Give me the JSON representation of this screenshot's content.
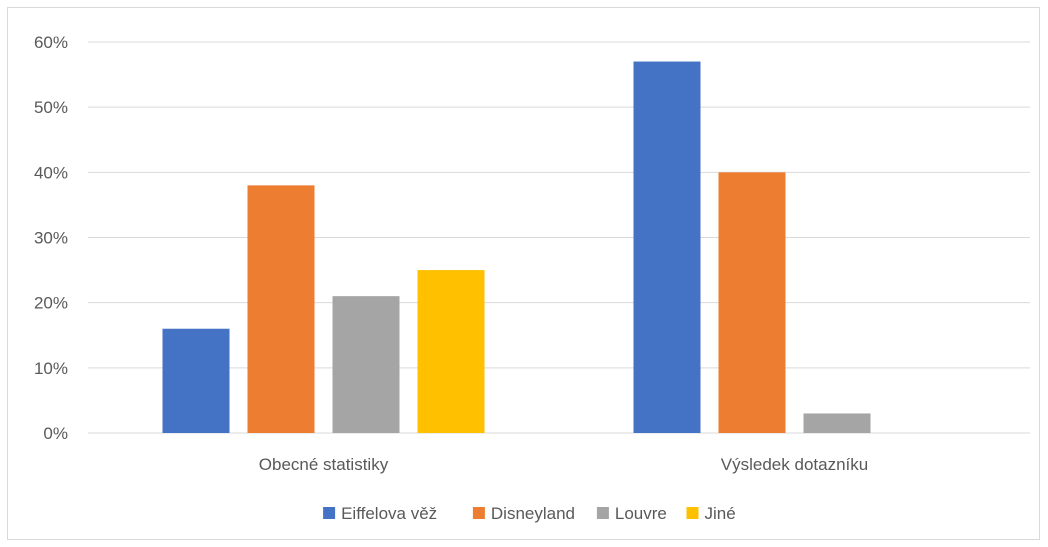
{
  "chart_data": {
    "type": "bar",
    "categories": [
      "Obecné statistiky",
      "Výsledek dotazníku"
    ],
    "series": [
      {
        "name": "Eiffelova věž",
        "values": [
          16,
          57
        ],
        "color": "#4472C4"
      },
      {
        "name": "Disneyland",
        "values": [
          38,
          40
        ],
        "color": "#ED7D31"
      },
      {
        "name": "Louvre",
        "values": [
          21,
          3
        ],
        "color": "#A5A5A5"
      },
      {
        "name": "Jiné",
        "values": [
          25,
          null
        ],
        "color": "#FFC000"
      }
    ],
    "y_ticks": [
      "0%",
      "10%",
      "20%",
      "30%",
      "40%",
      "50%",
      "60%"
    ],
    "ylim": [
      0,
      60
    ],
    "y_unit": "%",
    "grid": true,
    "legend_position": "bottom",
    "title": "",
    "xlabel": "",
    "ylabel": ""
  }
}
